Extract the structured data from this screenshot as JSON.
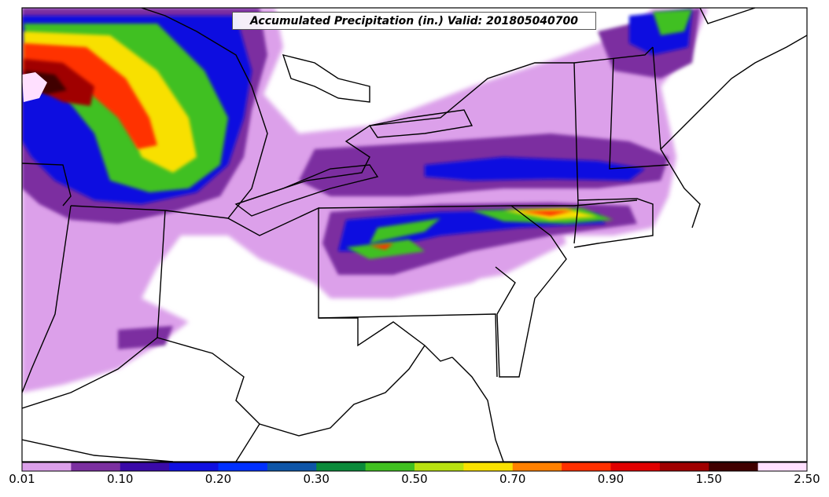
{
  "map": {
    "title": "Accumulated Precipitation (in.) Valid: 201805040700",
    "variable": "accumulated precipitation",
    "units": "in."
  },
  "colorbar": {
    "levels": [
      "0.01",
      "0.05",
      "0.10",
      "0.15",
      "0.20",
      "0.25",
      "0.30",
      "0.40",
      "0.50",
      "0.60",
      "0.70",
      "0.80",
      "0.90",
      "1.00",
      "1.50",
      "2.00",
      "2.50"
    ],
    "tick_labels": [
      "0.01",
      "0.10",
      "0.20",
      "0.30",
      "0.50",
      "0.70",
      "0.90",
      "1.50",
      "2.50"
    ],
    "colors": [
      "#dca0ea",
      "#7b2fa0",
      "#3a0aa8",
      "#1010e0",
      "#0030ff",
      "#0d55a8",
      "#0a8a3a",
      "#40c020",
      "#b8e010",
      "#f8e000",
      "#ff8000",
      "#ff3000",
      "#e00000",
      "#a00000",
      "#400000",
      "#ffe0ff"
    ]
  }
}
